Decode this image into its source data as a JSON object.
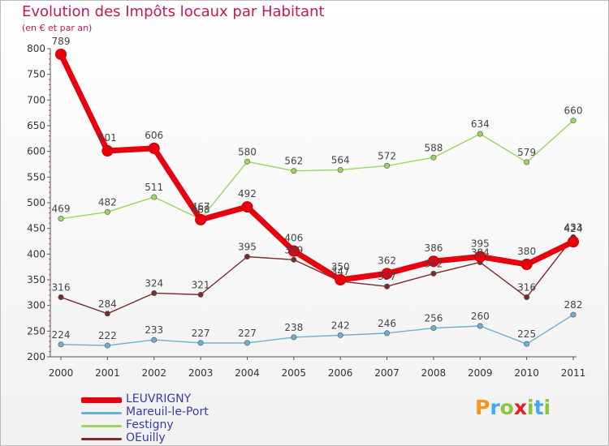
{
  "title": "Evolution des Impôts locaux par Habitant",
  "subtitle": "(en € et par an)",
  "logo": {
    "letters": [
      "P",
      "r",
      "o",
      "x",
      "i",
      "t",
      "i"
    ],
    "colors": [
      "#f7931e",
      "#3fa9f5",
      "#8cc63f",
      "#ed1c24",
      "#8cc63f",
      "#3fa9f5",
      "#8cc63f"
    ]
  },
  "chart_data": {
    "type": "line",
    "title": "Evolution des Impôts locaux par Habitant",
    "subtitle": "(en € et par an)",
    "xlabel": "",
    "ylabel": "",
    "x": [
      "2000",
      "2001",
      "2002",
      "2003",
      "2004",
      "2005",
      "2006",
      "2007",
      "2008",
      "2009",
      "2010",
      "2011"
    ],
    "ylim": [
      200,
      800
    ],
    "yticks": [
      200,
      250,
      300,
      350,
      400,
      450,
      500,
      550,
      600,
      650,
      700,
      750,
      800
    ],
    "grid": false,
    "legend_position": "bottom-left",
    "series": [
      {
        "name": "Mareuil-le-Port",
        "color": "#6baed6",
        "values": [
          224,
          222,
          233,
          227,
          227,
          238,
          242,
          246,
          256,
          260,
          225,
          282
        ]
      },
      {
        "name": "OEuilly",
        "color": "#7b2a2a",
        "values": [
          316,
          284,
          324,
          321,
          395,
          389,
          347,
          337,
          362,
          384,
          316,
          433
        ]
      },
      {
        "name": "Festigny",
        "color": "#9ad65f",
        "values": [
          469,
          482,
          511,
          468,
          580,
          562,
          564,
          572,
          588,
          634,
          579,
          660
        ]
      },
      {
        "name": "LEUVRIGNY",
        "color": "#e8000f",
        "values": [
          789,
          601,
          606,
          467,
          492,
          406,
          350,
          362,
          386,
          395,
          380,
          424
        ]
      }
    ],
    "legend_order": [
      "LEUVRIGNY",
      "Mareuil-le-Port",
      "Festigny",
      "OEuilly"
    ]
  }
}
